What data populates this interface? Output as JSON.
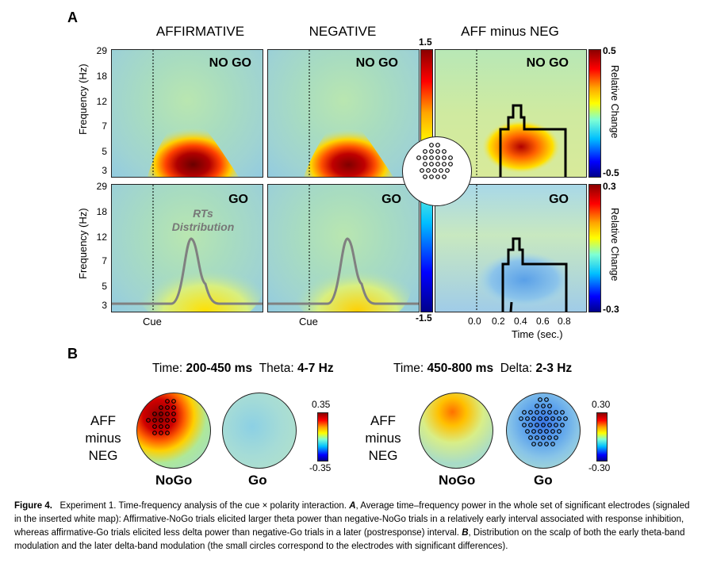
{
  "panel_a": {
    "letter": "A",
    "col_titles": [
      "AFFIRMATIVE",
      "NEGATIVE",
      "AFF minus NEG"
    ],
    "row_labels": [
      "NO GO",
      "GO"
    ],
    "y_axis_label": "Frequency (Hz)",
    "y_ticks": [
      "29",
      "18",
      "12",
      "7",
      "5",
      "3"
    ],
    "y_ticks_bottom": [
      "29",
      "18",
      "12",
      "7",
      "5",
      "3"
    ],
    "cue_label": "Cue",
    "rt_label_line1": "RTs",
    "rt_label_line2": "Distribution",
    "x_ticks": [
      "0.0",
      "0.2",
      "0.4",
      "0.6",
      "0.8"
    ],
    "x_axis_label": "Time (sec.)",
    "cbar_main": {
      "max": "1.5",
      "min": "-1.5"
    },
    "cbar_diff_top": {
      "max": "0.5",
      "min": "-0.5",
      "label": "Relative Change"
    },
    "cbar_diff_bottom": {
      "max": "0.3",
      "min": "-0.3",
      "label": "Relative Change"
    }
  },
  "panel_b": {
    "letter": "B",
    "left_header": {
      "time_word": "Time: ",
      "time": "200-450 ms",
      "band_word": "Theta: ",
      "band": "4-7 Hz"
    },
    "right_header": {
      "time_word": "Time: ",
      "time": "450-800 ms",
      "band_word": "Delta: ",
      "band": "2-3 Hz"
    },
    "row_label": [
      "AFF",
      "minus",
      "NEG"
    ],
    "conditions": [
      "NoGo",
      "Go"
    ],
    "cbar_left": {
      "max": "0.35",
      "min": "-0.35"
    },
    "cbar_right": {
      "max": "0.30",
      "min": "-0.30"
    }
  },
  "caption": {
    "fig": "Figure 4.",
    "text_1": "Experiment 1. Time-frequency analysis of the cue × polarity interaction. ",
    "a": "A",
    "text_2": ", Average time–frequency power in the whole set of significant electrodes (signaled in the inserted white map): Affirmative-NoGo trials elicited larger theta power than negative-NoGo trials in a relatively early interval associated with response inhibition, whereas affirmative-Go trials elicited less delta power than negative-Go trials in a later (postresponse) interval. ",
    "b": "B",
    "text_3": ", Distribution on the scalp of both the early theta-band modulation and the later delta-band modulation (the small circles correspond to the electrodes with significant differences)."
  },
  "colors": {
    "jet": [
      "#00008b",
      "#0000ff",
      "#00bfff",
      "#7fffd4",
      "#adff2f",
      "#ffff00",
      "#ffa500",
      "#ff0000",
      "#8b0000"
    ],
    "rt_curve": "#808080",
    "outline": "#000000"
  }
}
